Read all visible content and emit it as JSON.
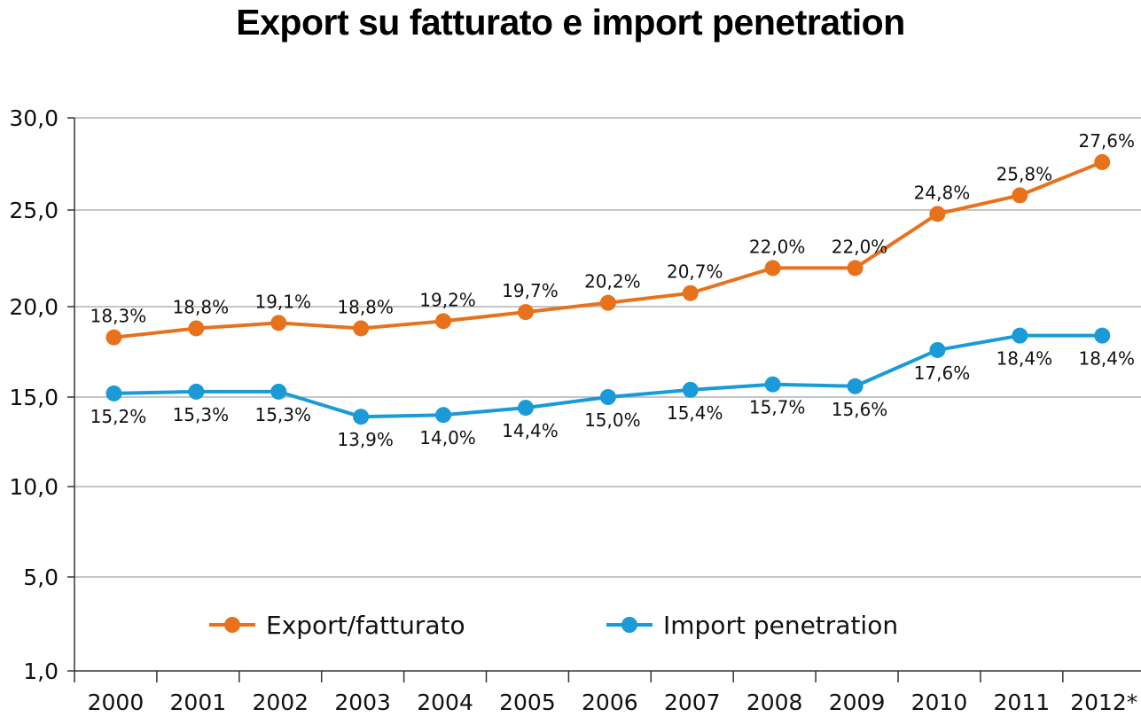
{
  "chart_data": {
    "type": "line",
    "title": "Export su fatturato e import penetration",
    "xlabel": "",
    "ylabel": "",
    "categories": [
      "2000",
      "2001",
      "2002",
      "2003",
      "2004",
      "2005",
      "2006",
      "2007",
      "2008",
      "2009",
      "2010",
      "2011",
      "2012*"
    ],
    "yticks": [
      "30,0",
      "25,0",
      "20,0",
      "15,0",
      "10,0",
      "5,0",
      "1,0"
    ],
    "ytick_values": [
      30,
      25,
      20,
      15,
      10,
      5,
      1
    ],
    "ylim": [
      1,
      30
    ],
    "grid": true,
    "legend_position": "bottom-center",
    "series": [
      {
        "name": "Export/fatturato",
        "color": "#E8721C",
        "values": [
          18.3,
          18.8,
          19.1,
          18.8,
          19.2,
          19.7,
          20.2,
          20.7,
          22.0,
          22.0,
          24.8,
          25.8,
          27.6
        ],
        "labels": [
          "18,3%",
          "18,8%",
          "19,1%",
          "18,8%",
          "19,2%",
          "19,7%",
          "20,2%",
          "20,7%",
          "22,0%",
          "22,0%",
          "24,8%",
          "25,8%",
          "27,6%"
        ],
        "label_placement": "above"
      },
      {
        "name": "Import penetration",
        "color": "#1A9BD7",
        "values": [
          15.2,
          15.3,
          15.3,
          13.9,
          14.0,
          14.4,
          15.0,
          15.4,
          15.7,
          15.6,
          17.6,
          18.4,
          18.4
        ],
        "labels": [
          "15,2%",
          "15,3%",
          "15,3%",
          "13,9%",
          "14,0%",
          "14,4%",
          "15,0%",
          "15,4%",
          "15,7%",
          "15,6%",
          "17,6%",
          "18,4%",
          "18,4%"
        ],
        "label_placement": "below"
      }
    ]
  }
}
